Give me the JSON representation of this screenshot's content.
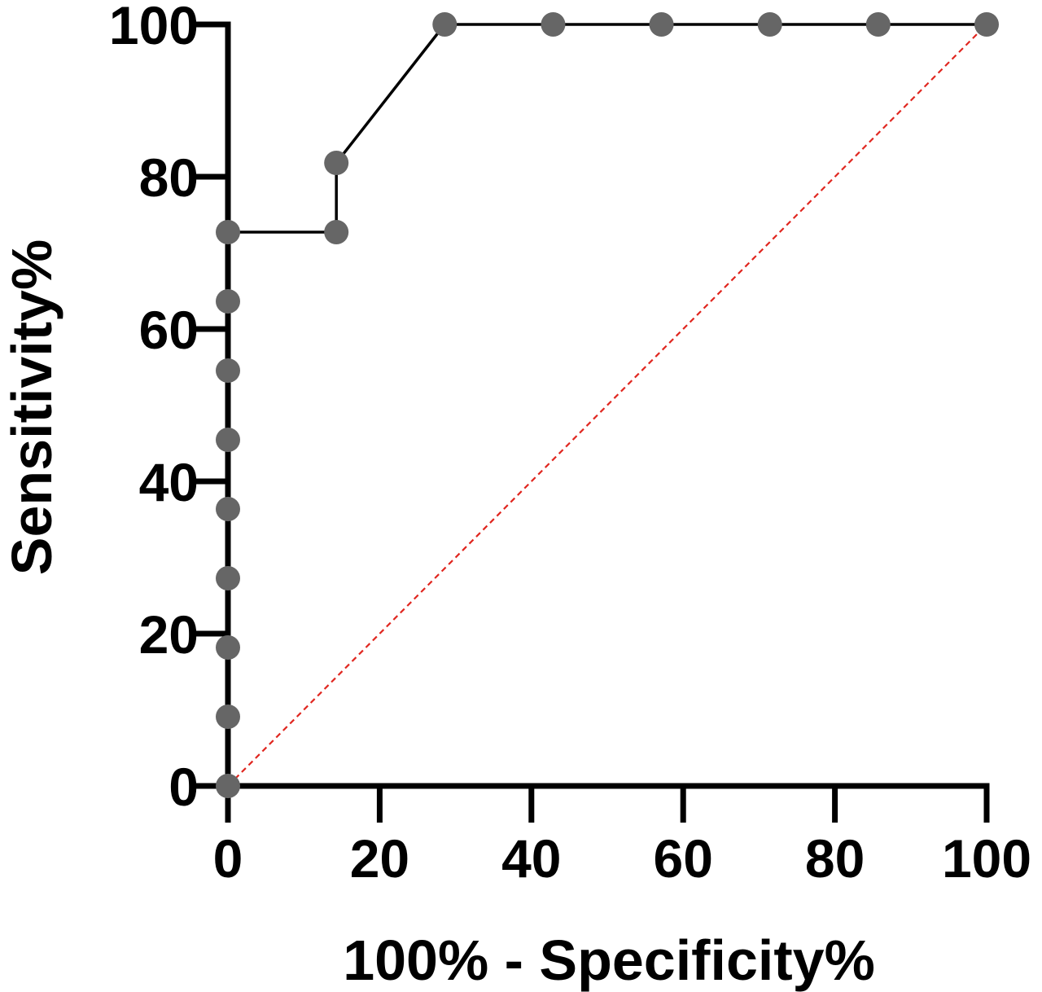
{
  "chart_data": {
    "type": "line",
    "title": "",
    "xlabel": "100% - Specificity%",
    "ylabel": "Sensitivity%",
    "xlim": [
      0,
      100
    ],
    "ylim": [
      0,
      100
    ],
    "xticks": [
      "0",
      "20",
      "40",
      "60",
      "80",
      "100"
    ],
    "yticks": [
      "0",
      "20",
      "40",
      "60",
      "80",
      "100"
    ],
    "grid": false,
    "legend": "none",
    "series": [
      {
        "x": [
          0,
          0,
          0,
          0,
          0,
          0,
          0,
          0,
          0,
          14.29,
          14.29,
          28.57,
          42.86,
          57.14,
          71.43,
          85.71,
          100
        ],
        "y": [
          0,
          9.09,
          18.18,
          27.27,
          36.36,
          45.45,
          54.55,
          63.64,
          72.73,
          72.73,
          81.82,
          100,
          100,
          100,
          100,
          100,
          100
        ],
        "line_color": "#000000",
        "marker_color": "#666666"
      }
    ],
    "reference_line": {
      "x": [
        0,
        100
      ],
      "y": [
        0,
        100
      ],
      "color": "#e0261f",
      "style": "dashed"
    }
  }
}
